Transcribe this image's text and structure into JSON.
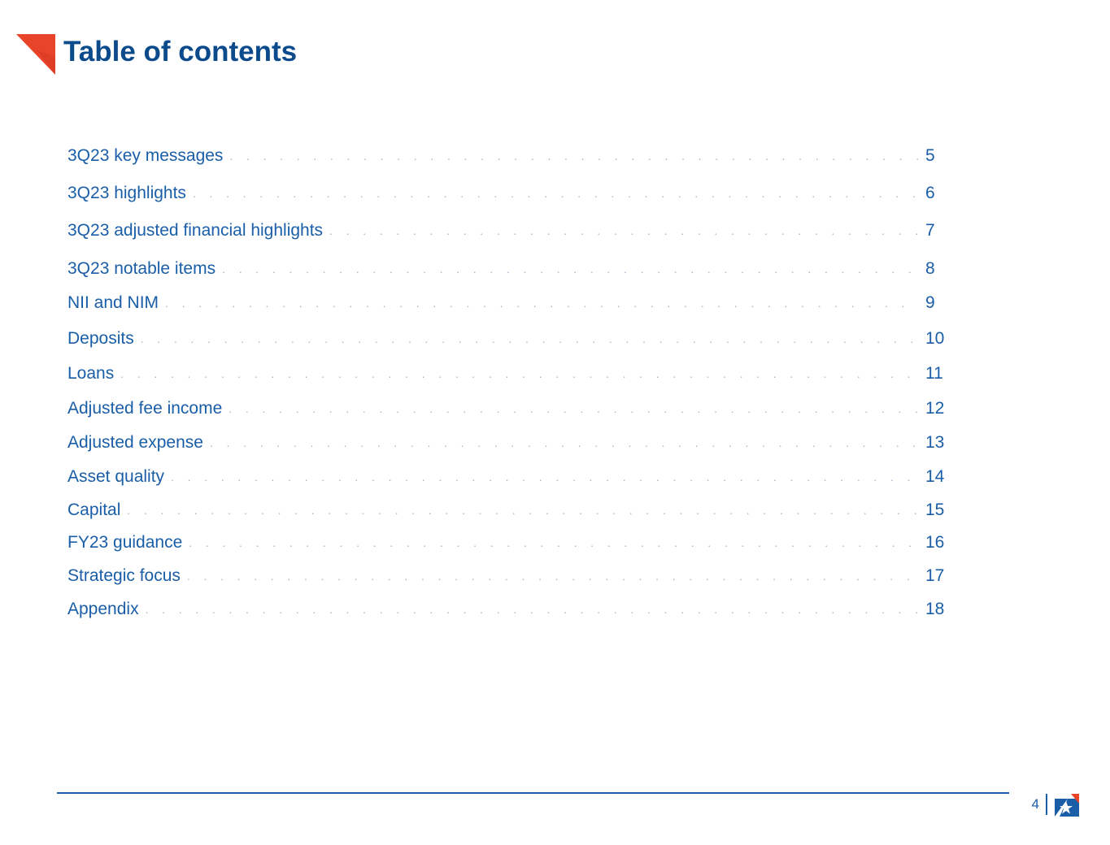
{
  "header": {
    "title": "Table of contents"
  },
  "toc": {
    "items": [
      {
        "label": "3Q23 key messages",
        "page": "5"
      },
      {
        "label": "3Q23 highlights",
        "page": "6"
      },
      {
        "label": "3Q23 adjusted financial highlights",
        "page": "7"
      },
      {
        "label": "3Q23 notable items",
        "page": "8"
      },
      {
        "label": "NII and NIM",
        "page": "9"
      },
      {
        "label": "Deposits",
        "page": "10"
      },
      {
        "label": "Loans",
        "page": "11"
      },
      {
        "label": "Adjusted fee income",
        "page": "12"
      },
      {
        "label": "Adjusted expense",
        "page": "13"
      },
      {
        "label": "Asset quality",
        "page": "14"
      },
      {
        "label": "Capital",
        "page": "15"
      },
      {
        "label": "FY23 guidance",
        "page": "16"
      },
      {
        "label": "Strategic focus",
        "page": "17"
      },
      {
        "label": "Appendix",
        "page": "18"
      }
    ]
  },
  "footer": {
    "page_number": "4",
    "logo_icon": "bank-star-logo-icon"
  },
  "colors": {
    "title": "#0b4a8b",
    "link": "#1a5ea8",
    "accent": "#e8442a"
  }
}
